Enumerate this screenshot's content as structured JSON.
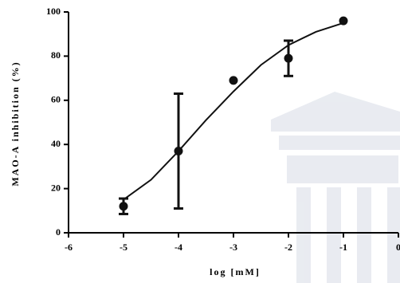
{
  "chart_data": {
    "type": "scatter",
    "x_label": "log [mM]",
    "y_label": "MAO-A inhibition (%)",
    "x": [
      -5,
      -4,
      -3,
      -2,
      -1
    ],
    "values": [
      12,
      37,
      69,
      79,
      96
    ],
    "errors": [
      3.5,
      26,
      null,
      8,
      null
    ],
    "fit": {
      "x": [
        -5,
        -4.5,
        -4,
        -3.5,
        -3,
        -2.5,
        -2,
        -1.5,
        -1
      ],
      "values": [
        15,
        24,
        37,
        51,
        64,
        76,
        85,
        91,
        95
      ]
    },
    "color": "#111111",
    "xlim": [
      -6,
      0
    ],
    "xticks": [
      -6,
      -5,
      -4,
      -3,
      -2,
      -1,
      0
    ],
    "ylim": [
      0,
      100
    ],
    "yticks": [
      0,
      20,
      40,
      60,
      80,
      100
    ]
  }
}
